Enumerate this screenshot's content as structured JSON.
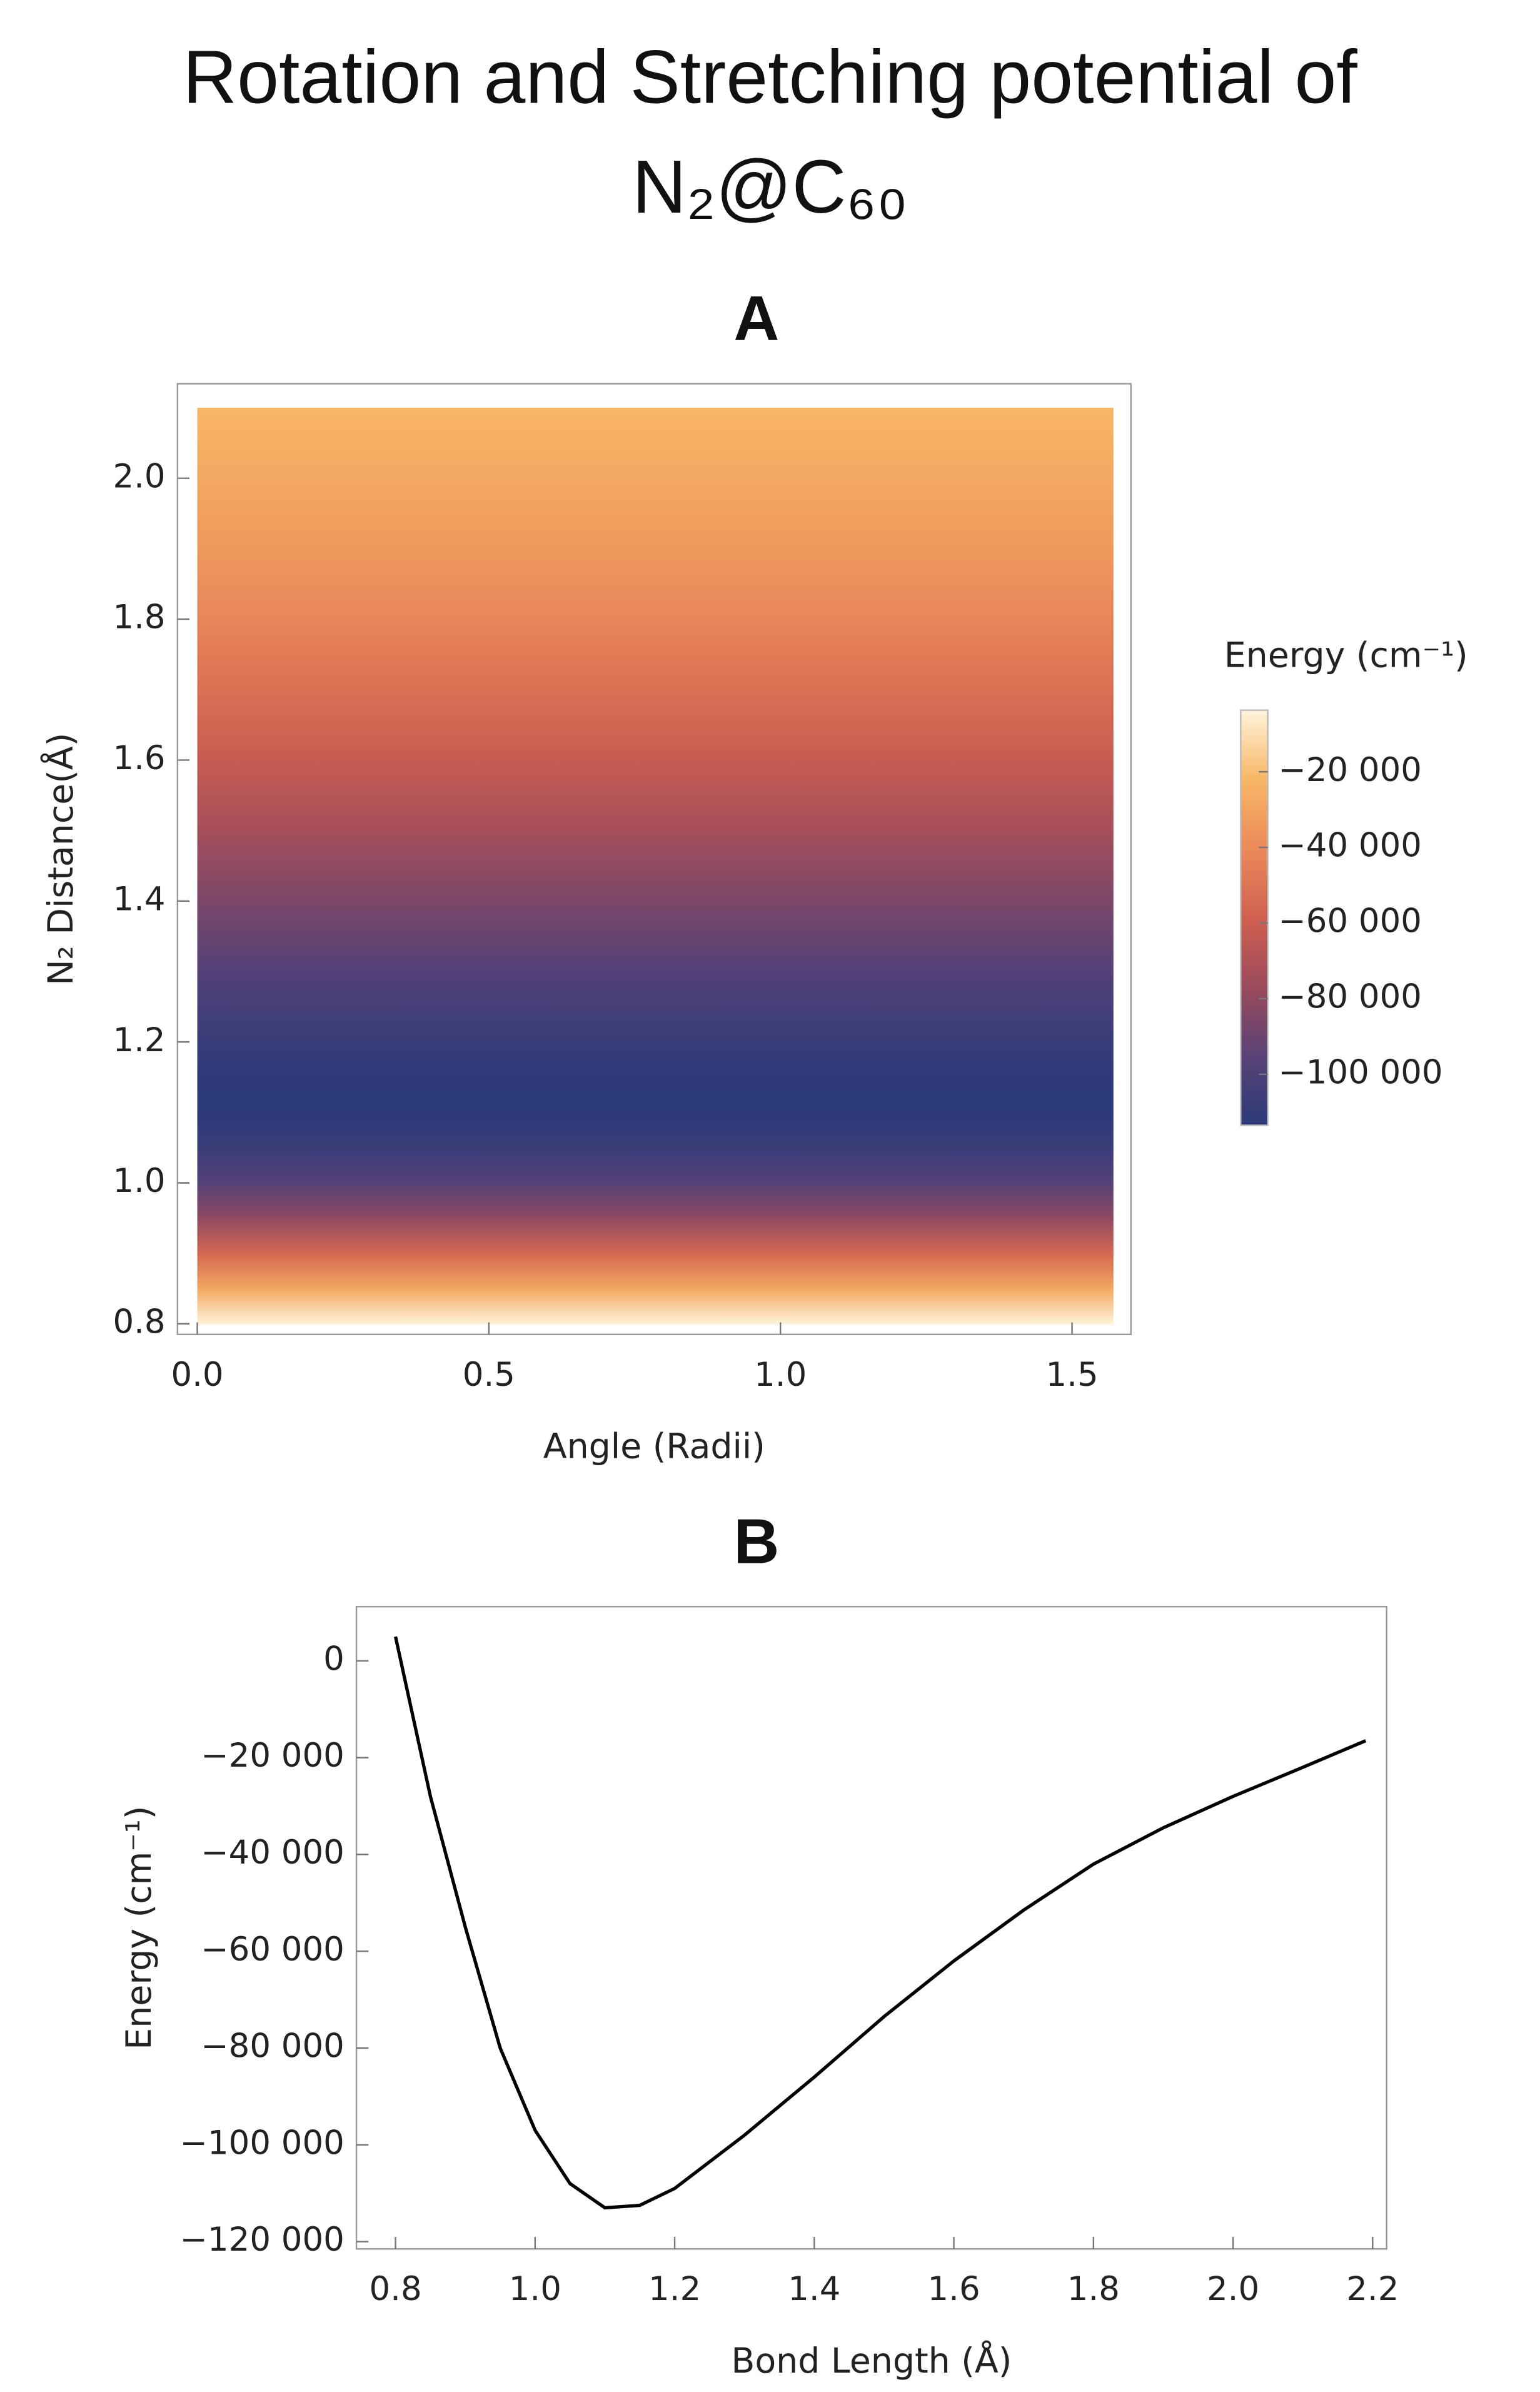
{
  "title": "Rotation and Stretching potential of N₂@C₆₀",
  "chart_data": [
    {
      "type": "heatmap",
      "panel": "A",
      "x_label": "Angle (Radii)",
      "y_label": "N₂ Distance(Å)",
      "xrange": [
        0,
        1.571
      ],
      "y": [
        0.8,
        0.85,
        0.9,
        0.95,
        1.0,
        1.05,
        1.1,
        1.15,
        1.2,
        1.3,
        1.4,
        1.5,
        1.6,
        1.7,
        1.8,
        1.9,
        2.0,
        2.1
      ],
      "values": [
        5000,
        -28000,
        -55000,
        -80000,
        -97000,
        -108000,
        -113000,
        -112500,
        -109000,
        -98000,
        -86000,
        -73500,
        -62000,
        -51500,
        -42000,
        -34500,
        -28000,
        -22000
      ],
      "xlim": [
        -0.034,
        1.601
      ],
      "ylim": [
        0.785,
        2.134
      ],
      "xticks": [
        {
          "value": 0,
          "label": "0.0"
        },
        0.5,
        {
          "value": 1,
          "label": "1.0"
        },
        1.5
      ],
      "yticks": [
        0.8,
        {
          "value": 1,
          "label": "1.0"
        },
        1.2,
        1.4,
        1.6,
        1.8,
        {
          "value": 2,
          "label": "2.0"
        }
      ],
      "colorscale": [
        "#2b3a78",
        "#5a4277",
        "#9b4a5c",
        "#d0604f",
        "#eb8a5a",
        "#f7b765",
        "#fff4dc"
      ],
      "colorbar": {
        "label": "Energy (cm⁻¹)",
        "range": [
          -113500,
          -3700
        ],
        "ticks": [
          {
            "value": -20000,
            "label": "−20 000"
          },
          {
            "value": -40000,
            "label": "−40 000"
          },
          {
            "value": -60000,
            "label": "−60 000"
          },
          {
            "value": -80000,
            "label": "−80 000"
          },
          {
            "value": -100000,
            "label": "−100 000"
          }
        ]
      }
    },
    {
      "type": "line",
      "panel": "B",
      "x_label": "Bond Length (Å)",
      "y_label": "Energy (cm⁻¹)",
      "x": [
        0.8,
        0.85,
        0.9,
        0.95,
        1.0,
        1.05,
        1.1,
        1.15,
        1.2,
        1.3,
        1.4,
        1.5,
        1.6,
        1.7,
        1.8,
        1.9,
        2.0,
        2.1,
        2.19
      ],
      "values": [
        5000,
        -28000,
        -55000,
        -80000,
        -97000,
        -108000,
        -113000,
        -112500,
        -109000,
        -98000,
        -86000,
        -73500,
        -62000,
        -51500,
        -42000,
        -34500,
        -28000,
        -22000,
        -16500
      ],
      "color": "#000000",
      "xlim": [
        0.744,
        2.22
      ],
      "ylim": [
        -121500,
        11200
      ],
      "xticks": [
        0.8,
        {
          "value": 1,
          "label": "1.0"
        },
        1.2,
        1.4,
        1.6,
        1.8,
        {
          "value": 2,
          "label": "2.0"
        },
        2.2
      ],
      "yticks": [
        0,
        {
          "value": -20000,
          "label": "−20 000"
        },
        {
          "value": -40000,
          "label": "−40 000"
        },
        {
          "value": -60000,
          "label": "−60 000"
        },
        {
          "value": -80000,
          "label": "−80 000"
        },
        {
          "value": -100000,
          "label": "−100 000"
        },
        {
          "value": -120000,
          "label": "−120 000"
        }
      ]
    }
  ]
}
